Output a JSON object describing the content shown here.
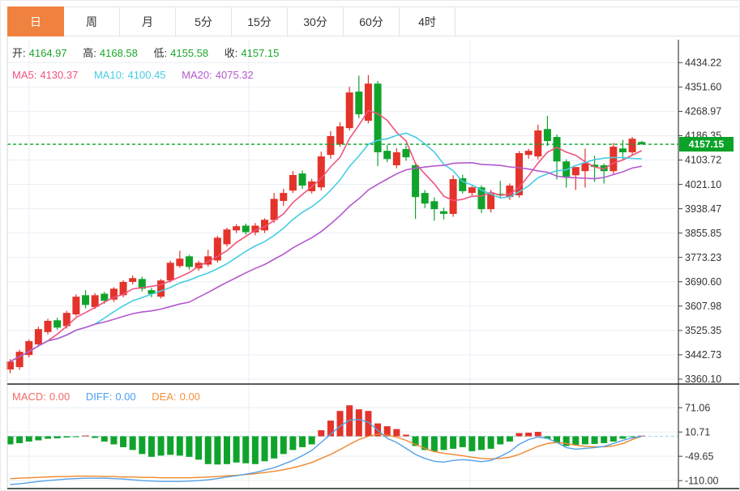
{
  "tabs": {
    "items": [
      {
        "id": "day",
        "label": "日",
        "active": true
      },
      {
        "id": "week",
        "label": "周",
        "active": false
      },
      {
        "id": "month",
        "label": "月",
        "active": false
      },
      {
        "id": "5min",
        "label": "5分",
        "active": false
      },
      {
        "id": "15min",
        "label": "15分",
        "active": false
      },
      {
        "id": "30min",
        "label": "30分",
        "active": false
      },
      {
        "id": "60min",
        "label": "60分",
        "active": false
      },
      {
        "id": "4hour",
        "label": "4时",
        "active": false
      }
    ]
  },
  "quote_bar": {
    "open_label": "开:",
    "open_value": "4164.97",
    "high_label": "高:",
    "high_value": "4168.58",
    "low_label": "低:",
    "low_value": "4155.58",
    "close_label": "收:",
    "close_value": "4157.15"
  },
  "ma_bar": {
    "ma5_label": "MA5:",
    "ma5_value": "4130.37",
    "ma10_label": "MA10:",
    "ma10_value": "4100.45",
    "ma20_label": "MA20:",
    "ma20_value": "4075.32"
  },
  "macd_bar": {
    "macd_label": "MACD:",
    "macd_value": "0.00",
    "diff_label": "DIFF:",
    "diff_value": "0.00",
    "dea_label": "DEA:",
    "dea_value": "0.00"
  },
  "price_axis": {
    "ticks": [
      "4434.22",
      "4351.60",
      "4268.97",
      "4186.35",
      "4103.72",
      "4021.10",
      "3938.47",
      "3855.85",
      "3773.23",
      "3690.60",
      "3607.98",
      "3525.35",
      "3442.73",
      "3360.10"
    ],
    "current_price": "4157.15"
  },
  "macd_axis": {
    "ticks": [
      "71.06",
      "10.71",
      "-49.65",
      "-110.00"
    ]
  },
  "colors": {
    "accent_orange": "#f0823f",
    "up": "#e3332a",
    "down": "#10a32c",
    "value_green": "#1ca62b",
    "ma5": "#f1547c",
    "ma10": "#47cde4",
    "ma20": "#b459ce",
    "price_line": "#0da42a",
    "badge_bg": "#0aa227",
    "macd_label": "#ef6b66",
    "diff_label": "#4aa0f5",
    "dea_label": "#f6923b",
    "diff_line": "#55a1e8",
    "dea_line": "#f0872a",
    "grid": "#e9eef5",
    "axis": "#404040",
    "text": "#333333"
  },
  "chart_data": {
    "type": "candlestick",
    "grid": true,
    "legend_position": "top-left",
    "panels": [
      {
        "name": "price",
        "type": "candlestick",
        "y_ticks": [
          4434.22,
          4351.6,
          4268.97,
          4186.35,
          4103.72,
          4021.1,
          3938.47,
          3855.85,
          3773.23,
          3690.6,
          3607.98,
          3525.35,
          3442.73,
          3360.1
        ],
        "current_price": 4157.15,
        "ohlc_display": {
          "open": 4164.97,
          "high": 4168.58,
          "low": 4155.58,
          "close": 4157.15
        },
        "ma_display": {
          "MA5": 4130.37,
          "MA10": 4100.45,
          "MA20": 4075.32
        },
        "overlays": [
          "MA5",
          "MA10",
          "MA20"
        ],
        "candles": [
          [
            3393,
            3428,
            3380,
            3420
          ],
          [
            3401,
            3460,
            3392,
            3453
          ],
          [
            3442,
            3495,
            3434,
            3489
          ],
          [
            3478,
            3538,
            3470,
            3530
          ],
          [
            3520,
            3565,
            3512,
            3558
          ],
          [
            3560,
            3568,
            3528,
            3535
          ],
          [
            3540,
            3592,
            3532,
            3585
          ],
          [
            3580,
            3648,
            3574,
            3640
          ],
          [
            3645,
            3662,
            3600,
            3612
          ],
          [
            3605,
            3652,
            3598,
            3645
          ],
          [
            3650,
            3656,
            3616,
            3626
          ],
          [
            3630,
            3672,
            3622,
            3667
          ],
          [
            3645,
            3696,
            3638,
            3690
          ],
          [
            3690,
            3712,
            3682,
            3703
          ],
          [
            3700,
            3708,
            3658,
            3667
          ],
          [
            3662,
            3670,
            3638,
            3649
          ],
          [
            3640,
            3700,
            3634,
            3695
          ],
          [
            3695,
            3762,
            3688,
            3755
          ],
          [
            3744,
            3796,
            3738,
            3769
          ],
          [
            3777,
            3782,
            3732,
            3741
          ],
          [
            3736,
            3762,
            3728,
            3755
          ],
          [
            3749,
            3799,
            3742,
            3777
          ],
          [
            3763,
            3846,
            3756,
            3840
          ],
          [
            3818,
            3874,
            3810,
            3868
          ],
          [
            3865,
            3886,
            3856,
            3879
          ],
          [
            3881,
            3888,
            3850,
            3859
          ],
          [
            3858,
            3890,
            3848,
            3881
          ],
          [
            3865,
            3906,
            3856,
            3901
          ],
          [
            3900,
            3992,
            3890,
            3972
          ],
          [
            3965,
            4006,
            3948,
            3992
          ],
          [
            4000,
            4066,
            3992,
            4053
          ],
          [
            4058,
            4068,
            4006,
            4017
          ],
          [
            3998,
            4040,
            3990,
            4031
          ],
          [
            4011,
            4132,
            4000,
            4116
          ],
          [
            4121,
            4202,
            4108,
            4185
          ],
          [
            4157,
            4232,
            4148,
            4218
          ],
          [
            4212,
            4352,
            4204,
            4333
          ],
          [
            4336,
            4390,
            4246,
            4259
          ],
          [
            4237,
            4392,
            4228,
            4363
          ],
          [
            4363,
            4372,
            4083,
            4130
          ],
          [
            4135,
            4154,
            4096,
            4107
          ],
          [
            4086,
            4144,
            4076,
            4130
          ],
          [
            4141,
            4152,
            4101,
            4113
          ],
          [
            4086,
            4097,
            3904,
            3978
          ],
          [
            3992,
            4002,
            3941,
            3956
          ],
          [
            3964,
            3977,
            3898,
            3937
          ],
          [
            3930,
            3942,
            3902,
            3921
          ],
          [
            3921,
            4052,
            3911,
            4039
          ],
          [
            4042,
            4054,
            3990,
            3998
          ],
          [
            3992,
            4016,
            3984,
            4011
          ],
          [
            4011,
            4018,
            3924,
            3937
          ],
          [
            3937,
            4002,
            3926,
            3990
          ],
          [
            3989,
            4033,
            3976,
            3984
          ],
          [
            3978,
            4024,
            3968,
            4017
          ],
          [
            3984,
            4134,
            3976,
            4127
          ],
          [
            4121,
            4142,
            4108,
            4135
          ],
          [
            4116,
            4224,
            4106,
            4204
          ],
          [
            4209,
            4254,
            4152,
            4168
          ],
          [
            4182,
            4190,
            4038,
            4099
          ],
          [
            4099,
            4106,
            4010,
            4047
          ],
          [
            4052,
            4062,
            4002,
            4080
          ],
          [
            4066,
            4142,
            4010,
            4094
          ],
          [
            4088,
            4118,
            4030,
            4080
          ],
          [
            4086,
            4092,
            4024,
            4066
          ],
          [
            4066,
            4162,
            4056,
            4149
          ],
          [
            4143,
            4172,
            4106,
            4130
          ],
          [
            4130,
            4182,
            4120,
            4176
          ],
          [
            4164.97,
            4168.58,
            4155.58,
            4157.15
          ]
        ]
      },
      {
        "name": "macd",
        "type": "histogram+lines",
        "y_ticks": [
          71.06,
          10.71,
          -49.65,
          -110.0
        ],
        "display": {
          "MACD": 0.0,
          "DIFF": 0.0,
          "DEA": 0.0
        },
        "hist": [
          -20,
          -17,
          -13,
          -10,
          -6,
          -5,
          -3,
          -2,
          2,
          -4,
          -13,
          -20,
          -27,
          -34,
          -44,
          -51,
          -48,
          -46,
          -48,
          -51,
          -58,
          -69,
          -70,
          -69,
          -65,
          -67,
          -69,
          -62,
          -55,
          -44,
          -34,
          -27,
          -20,
          15,
          39,
          63,
          77,
          67,
          63,
          32,
          25,
          18,
          4,
          -24,
          -34,
          -37,
          -34,
          -31,
          -27,
          -37,
          -34,
          -31,
          -20,
          -13,
          8,
          9,
          11,
          -6,
          -17,
          -24,
          -21,
          -20,
          -19,
          -17,
          -13,
          -6,
          -2,
          0
        ],
        "diff": [
          -120,
          -118,
          -115,
          -112,
          -110,
          -108,
          -106,
          -105,
          -104,
          -104,
          -104,
          -105,
          -106,
          -108,
          -110,
          -111,
          -112,
          -112,
          -112,
          -111,
          -110,
          -108,
          -105,
          -101,
          -98,
          -94,
          -90,
          -84,
          -78,
          -69,
          -60,
          -48,
          -35,
          -15,
          5,
          25,
          40,
          42,
          35,
          15,
          -5,
          -15,
          -30,
          -45,
          -55,
          -62,
          -64,
          -60,
          -58,
          -60,
          -63,
          -60,
          -50,
          -38,
          -20,
          -8,
          -2,
          -5,
          -15,
          -28,
          -32,
          -30,
          -28,
          -25,
          -18,
          -10,
          -4,
          0
        ],
        "dea": [
          -105,
          -104,
          -103,
          -102,
          -101,
          -100,
          -100,
          -99,
          -99,
          -99,
          -100,
          -100,
          -101,
          -101,
          -102,
          -102,
          -103,
          -103,
          -103,
          -103,
          -102,
          -101,
          -100,
          -98,
          -97,
          -95,
          -93,
          -90,
          -87,
          -83,
          -78,
          -72,
          -65,
          -55,
          -45,
          -33,
          -20,
          -8,
          0,
          5,
          3,
          -2,
          -10,
          -20,
          -30,
          -38,
          -42,
          -45,
          -48,
          -52,
          -55,
          -56,
          -55,
          -52,
          -45,
          -35,
          -25,
          -18,
          -15,
          -18,
          -22,
          -25,
          -26,
          -26,
          -24,
          -18,
          -8,
          0
        ]
      }
    ]
  }
}
